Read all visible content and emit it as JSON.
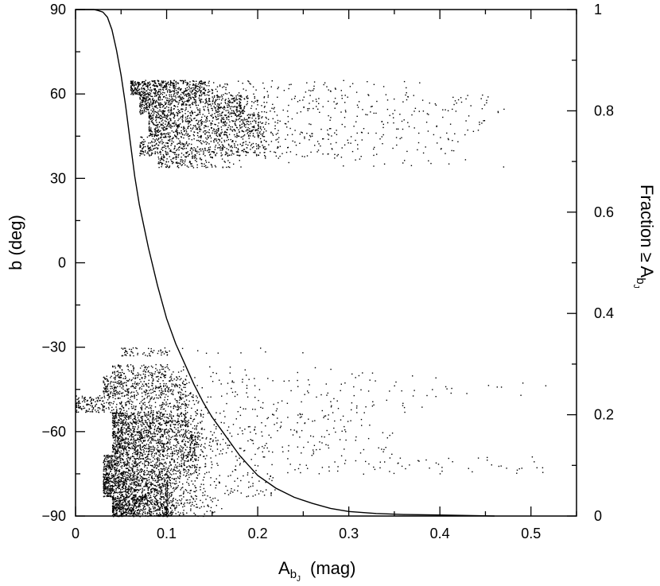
{
  "chart_data": {
    "type": "scatter",
    "xlabel_main": "A",
    "xlabel_sub": "b",
    "xlabel_subsub": "J",
    "xlabel_unit": "(mag)",
    "ylabel": "b (deg)",
    "y2label_main": "Fraction ≥ A",
    "y2label_sub": "b",
    "y2label_subsub": "J",
    "xlim": [
      0,
      0.55
    ],
    "ylim": [
      -90,
      90
    ],
    "y2lim": [
      0,
      1
    ],
    "x_ticks": [
      "0",
      "0.1",
      "0.2",
      "0.3",
      "0.4",
      "0.5"
    ],
    "y_ticks": [
      "90",
      "60",
      "30",
      "0",
      "−30",
      "−60",
      "−90"
    ],
    "y2_ticks": [
      "1",
      "0.8",
      "0.6",
      "0.4",
      "0.2",
      "0"
    ],
    "scatter_bands": [
      {
        "b_min": 60,
        "b_max": 65,
        "x_min": 0.06,
        "x_core": 0.14,
        "x_tail": 0.38,
        "density": 1.0
      },
      {
        "b_min": 53,
        "b_max": 60,
        "x_min": 0.07,
        "x_core": 0.18,
        "x_tail": 0.47,
        "density": 1.0
      },
      {
        "b_min": 45,
        "b_max": 53,
        "x_min": 0.08,
        "x_core": 0.2,
        "x_tail": 0.45,
        "density": 0.9
      },
      {
        "b_min": 38,
        "b_max": 45,
        "x_min": 0.07,
        "x_core": 0.2,
        "x_tail": 0.42,
        "density": 0.7
      },
      {
        "b_min": 34,
        "b_max": 38,
        "x_min": 0.09,
        "x_core": 0.15,
        "x_tail": 0.47,
        "density": 0.35
      },
      {
        "b_min": -33,
        "b_max": -30,
        "x_min": 0.05,
        "x_core": 0.1,
        "x_tail": 0.28,
        "density": 0.2
      },
      {
        "b_min": -40,
        "b_max": -36,
        "x_min": 0.04,
        "x_core": 0.1,
        "x_tail": 0.33,
        "density": 0.3
      },
      {
        "b_min": -47,
        "b_max": -40,
        "x_min": 0.03,
        "x_core": 0.12,
        "x_tail": 0.52,
        "density": 0.55
      },
      {
        "b_min": -53,
        "b_max": -47,
        "x_min": 0.0,
        "x_core": 0.12,
        "x_tail": 0.4,
        "density": 0.6
      },
      {
        "b_min": -60,
        "b_max": -53,
        "x_min": 0.04,
        "x_core": 0.12,
        "x_tail": 0.33,
        "density": 0.85
      },
      {
        "b_min": -68,
        "b_max": -60,
        "x_min": 0.04,
        "x_core": 0.13,
        "x_tail": 0.35,
        "density": 0.9
      },
      {
        "b_min": -75,
        "b_max": -68,
        "x_min": 0.03,
        "x_core": 0.13,
        "x_tail": 0.52,
        "density": 0.9
      },
      {
        "b_min": -83,
        "b_max": -75,
        "x_min": 0.03,
        "x_core": 0.1,
        "x_tail": 0.22,
        "density": 1.0
      },
      {
        "b_min": -90,
        "b_max": -83,
        "x_min": 0.04,
        "x_core": 0.1,
        "x_tail": 0.16,
        "density": 1.0
      }
    ],
    "cumulative_curve": [
      {
        "x": 0.0,
        "f": 1.0
      },
      {
        "x": 0.02,
        "f": 1.0
      },
      {
        "x": 0.025,
        "f": 0.998
      },
      {
        "x": 0.03,
        "f": 0.995
      },
      {
        "x": 0.035,
        "f": 0.985
      },
      {
        "x": 0.04,
        "f": 0.96
      },
      {
        "x": 0.045,
        "f": 0.92
      },
      {
        "x": 0.05,
        "f": 0.87
      },
      {
        "x": 0.055,
        "f": 0.81
      },
      {
        "x": 0.06,
        "f": 0.74
      },
      {
        "x": 0.065,
        "f": 0.67
      },
      {
        "x": 0.07,
        "f": 0.615
      },
      {
        "x": 0.08,
        "f": 0.53
      },
      {
        "x": 0.09,
        "f": 0.455
      },
      {
        "x": 0.1,
        "f": 0.39
      },
      {
        "x": 0.11,
        "f": 0.34
      },
      {
        "x": 0.12,
        "f": 0.3
      },
      {
        "x": 0.13,
        "f": 0.26
      },
      {
        "x": 0.14,
        "f": 0.225
      },
      {
        "x": 0.15,
        "f": 0.195
      },
      {
        "x": 0.16,
        "f": 0.17
      },
      {
        "x": 0.17,
        "f": 0.145
      },
      {
        "x": 0.18,
        "f": 0.12
      },
      {
        "x": 0.19,
        "f": 0.1
      },
      {
        "x": 0.2,
        "f": 0.08
      },
      {
        "x": 0.22,
        "f": 0.055
      },
      {
        "x": 0.24,
        "f": 0.037
      },
      {
        "x": 0.26,
        "f": 0.025
      },
      {
        "x": 0.28,
        "f": 0.015
      },
      {
        "x": 0.3,
        "f": 0.009
      },
      {
        "x": 0.33,
        "f": 0.005
      },
      {
        "x": 0.36,
        "f": 0.003
      },
      {
        "x": 0.4,
        "f": 0.002
      },
      {
        "x": 0.46,
        "f": 0.0
      }
    ],
    "grid": false,
    "legend": "none",
    "colors": {
      "points": "#000000",
      "curve": "#000000",
      "axes": "#000000"
    }
  }
}
